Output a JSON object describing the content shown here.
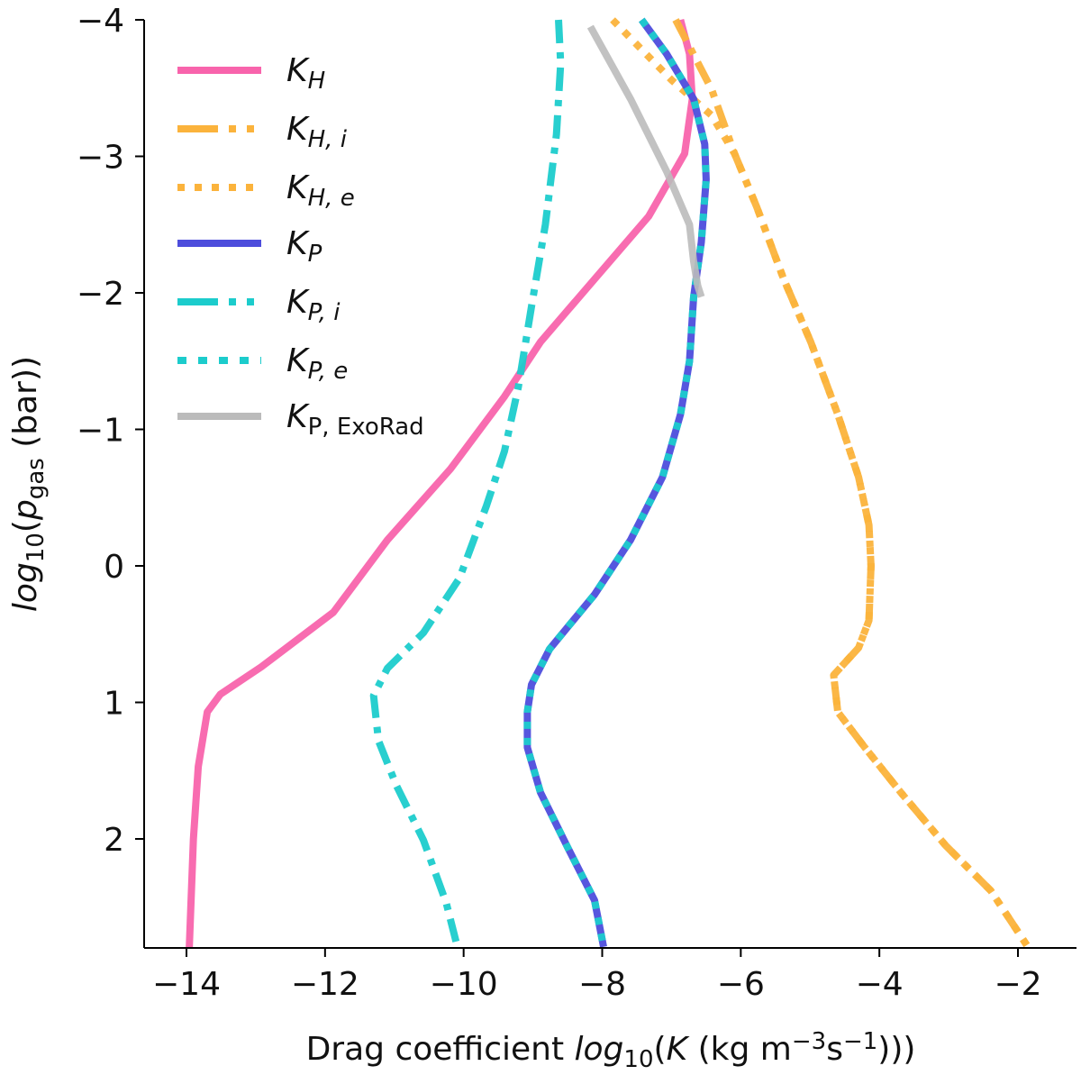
{
  "chart_data": {
    "type": "line",
    "xlabel": "Drag coefficient |log|_{10}(|K| (kg m^{−3}s^{−1})))",
    "ylabel": "|log|_{10}(|p|_{gas} (bar))",
    "xlim": [
      -14.6,
      -1.15
    ],
    "ylim": [
      2.8,
      -4
    ],
    "y_inverted": true,
    "grid": false,
    "legend_position": "top-left",
    "xticks": [
      -14,
      -12,
      -10,
      -8,
      -6,
      -4,
      -2
    ],
    "xtick_labels": [
      "−14",
      "−12",
      "−10",
      "−8",
      "−6",
      "−4",
      "−2"
    ],
    "yticks": [
      -4,
      -3,
      -2,
      -1,
      0,
      1,
      2
    ],
    "ytick_labels": [
      "−4",
      "−3",
      "−2",
      "−1",
      "0",
      "1",
      "2"
    ],
    "series": [
      {
        "name": "K_{H}",
        "color": "#f864ac",
        "style": "solid",
        "x": [
          -6.87,
          -6.74,
          -6.7,
          -6.81,
          -7.33,
          -8.11,
          -8.89,
          -9.41,
          -10.19,
          -11.1,
          -11.88,
          -12.92,
          -13.51,
          -13.7,
          -13.83,
          -13.9,
          -13.96
        ],
        "y": [
          -4,
          -3.75,
          -3.42,
          -3.02,
          -2.56,
          -2.1,
          -1.64,
          -1.24,
          -0.71,
          -0.19,
          0.34,
          0.74,
          0.94,
          1.07,
          1.47,
          2.0,
          2.8
        ]
      },
      {
        "name": "K_{H, i}",
        "color": "#fbb33c",
        "style": "dashdot",
        "x": [
          -6.94,
          -6.42,
          -6.09,
          -5.77,
          -5.38,
          -4.99,
          -4.6,
          -4.3,
          -4.15,
          -4.12,
          -4.15,
          -4.3,
          -4.66,
          -4.6,
          -4.21,
          -3.69,
          -3.04,
          -2.39,
          -1.87
        ],
        "y": [
          -4,
          -3.49,
          -3.02,
          -2.63,
          -2.1,
          -1.64,
          -1.11,
          -0.65,
          -0.3,
          0.0,
          0.4,
          0.6,
          0.8,
          1.07,
          1.33,
          1.66,
          2.05,
          2.38,
          2.78
        ]
      },
      {
        "name": "K_{H, e}",
        "color": "#fbb33c",
        "style": "dotted",
        "x": [
          -7.85,
          -7.0,
          -6.42,
          -6.09,
          -5.77,
          -5.38,
          -4.99,
          -4.6,
          -4.3,
          -4.15,
          -4.12,
          -4.15,
          -4.3,
          -4.66,
          -4.6,
          -4.21,
          -3.69,
          -3.04,
          -2.39,
          -1.87
        ],
        "y": [
          -4,
          -3.56,
          -3.3,
          -3.02,
          -2.63,
          -2.1,
          -1.64,
          -1.11,
          -0.65,
          -0.3,
          0.0,
          0.4,
          0.6,
          0.8,
          1.07,
          1.33,
          1.66,
          2.05,
          2.38,
          2.78
        ]
      },
      {
        "name": "K_{P}",
        "color": "#4d4ddc",
        "style": "solid",
        "x": [
          -7.43,
          -7.07,
          -6.68,
          -6.52,
          -6.5,
          -6.57,
          -6.68,
          -6.74,
          -6.87,
          -7.13,
          -7.59,
          -8.11,
          -8.76,
          -9.02,
          -9.08,
          -9.08,
          -8.89,
          -8.5,
          -8.11,
          -7.98
        ],
        "y": [
          -4,
          -3.75,
          -3.42,
          -3.09,
          -2.83,
          -2.37,
          -1.97,
          -1.5,
          -1.11,
          -0.65,
          -0.19,
          0.21,
          0.61,
          0.87,
          1.07,
          1.33,
          1.66,
          2.06,
          2.45,
          2.79
        ]
      },
      {
        "name": "K_{P, i}",
        "color": "#1ccccc",
        "style": "dashdot",
        "x": [
          -8.63,
          -8.6,
          -8.66,
          -8.82,
          -9.02,
          -9.21,
          -9.41,
          -9.67,
          -10.06,
          -10.58,
          -11.1,
          -11.3,
          -11.23,
          -10.97,
          -10.58,
          -10.25,
          -10.09
        ],
        "y": [
          -4,
          -3.68,
          -3.16,
          -2.5,
          -1.9,
          -1.31,
          -0.84,
          -0.44,
          0.09,
          0.49,
          0.75,
          0.95,
          1.28,
          1.61,
          2.01,
          2.47,
          2.79
        ]
      },
      {
        "name": "K_{P, e}",
        "color": "#1ccccc",
        "style": "dotted",
        "x": [
          -7.43,
          -7.07,
          -6.68,
          -6.52,
          -6.5,
          -6.57,
          -6.68,
          -6.74,
          -6.87,
          -7.13,
          -7.59,
          -8.11,
          -8.76,
          -9.02,
          -9.08,
          -9.08,
          -8.89,
          -8.5,
          -8.11,
          -7.98
        ],
        "y": [
          -4,
          -3.75,
          -3.42,
          -3.09,
          -2.83,
          -2.37,
          -1.97,
          -1.5,
          -1.11,
          -0.65,
          -0.19,
          0.21,
          0.61,
          0.87,
          1.07,
          1.33,
          1.66,
          2.06,
          2.45,
          2.79
        ]
      },
      {
        "name": "K_{P, }ExoRad",
        "color": "#bbbbbb",
        "style": "solid",
        "x": [
          -8.17,
          -7.59,
          -7.07,
          -6.74,
          -6.68,
          -6.62,
          -6.57
        ],
        "y": [
          -3.95,
          -3.42,
          -2.89,
          -2.5,
          -2.23,
          -2.05,
          -1.97
        ]
      }
    ]
  }
}
